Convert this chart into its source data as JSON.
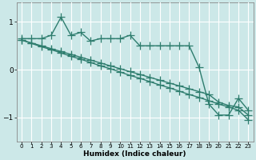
{
  "bg_color": "#cce8e8",
  "grid_color": "#b0d8d8",
  "line_color": "#2e7d6e",
  "xlabel": "Humidex (Indice chaleur)",
  "ylim": [
    -1.5,
    1.4
  ],
  "xlim": [
    -0.5,
    23.5
  ],
  "yticks": [
    -1,
    0,
    1
  ],
  "xticks": [
    0,
    1,
    2,
    3,
    4,
    5,
    6,
    7,
    8,
    9,
    10,
    11,
    12,
    13,
    14,
    15,
    16,
    17,
    18,
    19,
    20,
    21,
    22,
    23
  ],
  "line1_x": [
    0,
    1,
    2,
    3,
    4,
    5,
    6,
    7,
    8,
    9,
    10,
    11,
    12,
    13,
    14,
    15,
    16,
    17,
    18,
    19,
    20,
    21,
    22,
    23
  ],
  "line1_y": [
    0.65,
    0.65,
    0.65,
    0.72,
    1.1,
    0.72,
    0.78,
    0.6,
    0.65,
    0.65,
    0.65,
    0.72,
    0.5,
    0.5,
    0.5,
    0.5,
    0.5,
    0.5,
    0.05,
    -0.72,
    -0.95,
    -0.95,
    -0.6,
    -0.85
  ],
  "line2_x": [
    0,
    1,
    2,
    3,
    4,
    5,
    6,
    7,
    8,
    9,
    10,
    11,
    12,
    13,
    14,
    15,
    16,
    17,
    18,
    19,
    20,
    21,
    22,
    23
  ],
  "line2_y": [
    0.62,
    0.55,
    0.48,
    0.42,
    0.35,
    0.28,
    0.22,
    0.15,
    0.08,
    0.02,
    -0.05,
    -0.12,
    -0.18,
    -0.25,
    -0.32,
    -0.38,
    -0.45,
    -0.52,
    -0.58,
    -0.65,
    -0.72,
    -0.78,
    -0.85,
    -1.05
  ],
  "line3_x": [
    0,
    1,
    2,
    3,
    4,
    5,
    6,
    7,
    8,
    9,
    10,
    11,
    12,
    13,
    14,
    15,
    16,
    17,
    18,
    19,
    20,
    21,
    22,
    23
  ],
  "line3_y": [
    0.62,
    0.56,
    0.5,
    0.44,
    0.38,
    0.32,
    0.26,
    0.2,
    0.14,
    0.08,
    0.02,
    -0.04,
    -0.1,
    -0.16,
    -0.22,
    -0.28,
    -0.34,
    -0.4,
    -0.46,
    -0.52,
    -0.68,
    -0.75,
    -0.78,
    -0.95
  ],
  "marker_size": 3.5,
  "linewidth": 1.0
}
